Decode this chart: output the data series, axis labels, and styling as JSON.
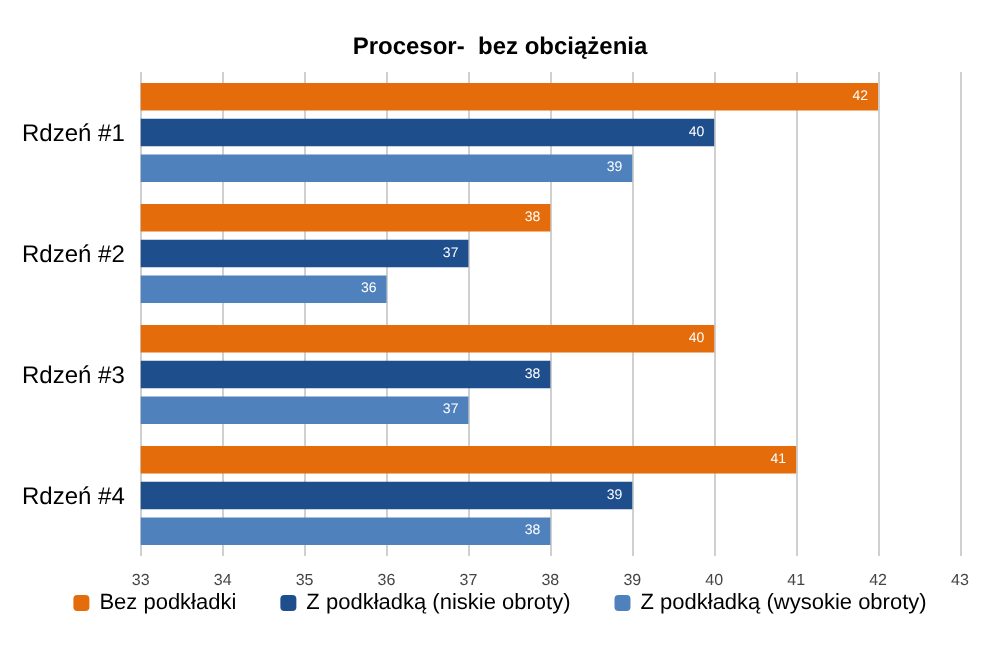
{
  "chart_data": {
    "type": "bar",
    "orientation": "horizontal",
    "title": "Procesor-  bez obciążenia",
    "categories": [
      "Rdzeń #1",
      "Rdzeń #2",
      "Rdzeń #3",
      "Rdzeń #4"
    ],
    "series": [
      {
        "name": "Bez podkładki",
        "color": "#e46c0a",
        "values": [
          42,
          38,
          40,
          41
        ]
      },
      {
        "name": "Z podkładką (niskie obroty)",
        "color": "#1f4e8c",
        "values": [
          40,
          37,
          38,
          39
        ]
      },
      {
        "name": "Z podkładką (wysokie obroty)",
        "color": "#4f81bd",
        "values": [
          39,
          36,
          37,
          38
        ]
      }
    ],
    "xlim": [
      33,
      43
    ],
    "xticks": [
      33,
      34,
      35,
      36,
      37,
      38,
      39,
      40,
      41,
      42,
      43
    ],
    "grid": "x",
    "legend": "bottom",
    "data_labels": true
  }
}
